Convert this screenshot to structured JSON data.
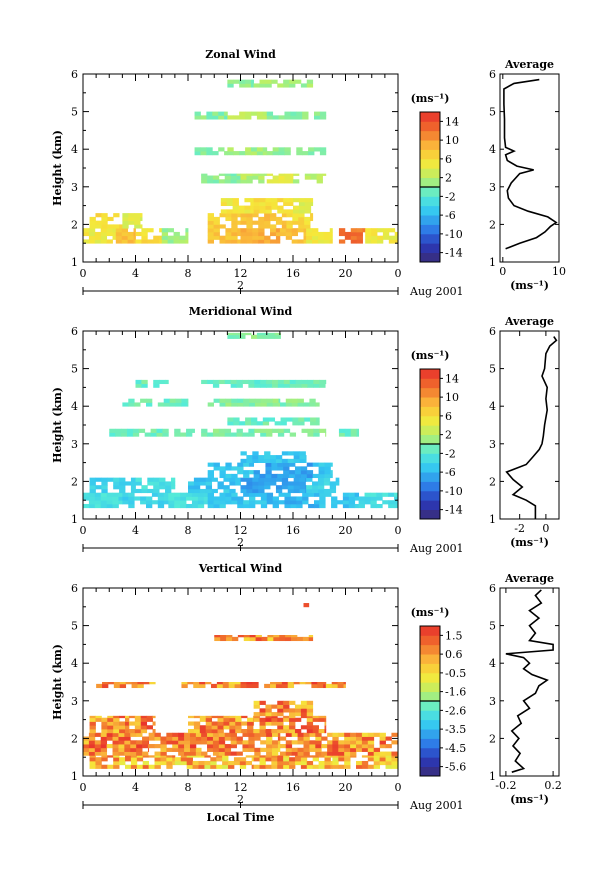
{
  "chart_data": [
    {
      "type": "heatmap",
      "title": "Zonal Wind",
      "ylabel": "Height (km)",
      "xlabel": "",
      "ylim": [
        1,
        6
      ],
      "xlim": [
        0,
        24
      ],
      "yticks": [
        "1",
        "2",
        "3",
        "4",
        "5",
        "6"
      ],
      "xticks": [
        "0",
        "4",
        "8",
        "12",
        "16",
        "20",
        "0"
      ],
      "date_day": "2",
      "date_label": "Aug 2001",
      "colorbar_unit": "(ms⁻¹)",
      "colorbar_ticks": [
        "14",
        "10",
        "6",
        "2",
        "-2",
        "-6",
        "-10",
        "-14"
      ],
      "cmin": -16,
      "cmax": 16,
      "color_stops": [
        "#3a2b74",
        "#2a38b8",
        "#2e7ee8",
        "#33c4f2",
        "#56ecd8",
        "#b6f06a",
        "#f6e83a",
        "#fab43a",
        "#f06a2c",
        "#e8302c"
      ],
      "layers": [
        {
          "y": [
            1.5,
            1.9
          ],
          "segments": [
            [
              0,
              2.5,
              5
            ],
            [
              2.5,
              4,
              8
            ],
            [
              4,
              6,
              6
            ],
            [
              6,
              8,
              1
            ],
            [
              9.5,
              12,
              8
            ],
            [
              12,
              15,
              9
            ],
            [
              15,
              17,
              8
            ],
            [
              17,
              19,
              5
            ],
            [
              19.5,
              21.5,
              12
            ],
            [
              21.5,
              24,
              5
            ]
          ]
        },
        {
          "y": [
            1.9,
            2.3
          ],
          "segments": [
            [
              0.5,
              3,
              6
            ],
            [
              3,
              4.5,
              4
            ],
            [
              9.5,
              12,
              7
            ],
            [
              12,
              15.5,
              8
            ],
            [
              15.5,
              17.5,
              6
            ]
          ]
        },
        {
          "y": [
            2.3,
            2.7
          ],
          "segments": [
            [
              10.5,
              13,
              5
            ],
            [
              13,
              16,
              6
            ],
            [
              16,
              17.5,
              4
            ]
          ]
        },
        {
          "y": [
            3.1,
            3.35
          ],
          "segments": [
            [
              9,
              12,
              0
            ],
            [
              12,
              14,
              2
            ],
            [
              14,
              16,
              4
            ],
            [
              16,
              18.5,
              2
            ]
          ]
        },
        {
          "y": [
            3.85,
            4.05
          ],
          "segments": [
            [
              8.5,
              11,
              0
            ],
            [
              11,
              14,
              1
            ],
            [
              14,
              18.5,
              0
            ]
          ]
        },
        {
          "y": [
            4.8,
            5.0
          ],
          "segments": [
            [
              8.5,
              11,
              0
            ],
            [
              11,
              14,
              2
            ],
            [
              14,
              18.5,
              0
            ]
          ]
        },
        {
          "y": [
            5.65,
            5.85
          ],
          "segments": [
            [
              11,
              13,
              0
            ],
            [
              13,
              17.5,
              1
            ]
          ]
        }
      ],
      "average": {
        "title": "Average",
        "xticks": [
          "0",
          "10"
        ],
        "xlim": [
          -0.5,
          10
        ],
        "unit": "(ms⁻¹)",
        "profile": [
          [
            1.35,
            0.5
          ],
          [
            1.5,
            3.0
          ],
          [
            1.65,
            6.0
          ],
          [
            1.8,
            7.5
          ],
          [
            1.95,
            8.5
          ],
          [
            2.05,
            9.5
          ],
          [
            2.2,
            8.0
          ],
          [
            2.35,
            4.5
          ],
          [
            2.5,
            2.0
          ],
          [
            2.7,
            1.0
          ],
          [
            2.9,
            0.8
          ],
          [
            3.1,
            1.5
          ],
          [
            3.35,
            3.0
          ],
          [
            3.45,
            5.5
          ],
          [
            3.55,
            2.5
          ],
          [
            3.7,
            0.8
          ],
          [
            3.85,
            0.5
          ],
          [
            3.95,
            2.0
          ],
          [
            4.05,
            0.5
          ],
          [
            4.3,
            0.3
          ],
          [
            4.8,
            0.3
          ],
          [
            5.2,
            0.2
          ],
          [
            5.6,
            0.2
          ],
          [
            5.75,
            2.0
          ],
          [
            5.85,
            6.5
          ]
        ]
      }
    },
    {
      "type": "heatmap",
      "title": "Meridional Wind",
      "ylabel": "Height (km)",
      "xlabel": "",
      "ylim": [
        1,
        6
      ],
      "xlim": [
        0,
        24
      ],
      "yticks": [
        "1",
        "2",
        "3",
        "4",
        "5",
        "6"
      ],
      "xticks": [
        "0",
        "4",
        "8",
        "12",
        "16",
        "20",
        "0"
      ],
      "date_day": "2",
      "date_label": "Aug 2001",
      "colorbar_unit": "(ms⁻¹)",
      "colorbar_ticks": [
        "14",
        "10",
        "6",
        "2",
        "-2",
        "-6",
        "-10",
        "-14"
      ],
      "cmin": -16,
      "cmax": 16,
      "color_stops": [
        "#3a2b74",
        "#2a38b8",
        "#2e7ee8",
        "#33c4f2",
        "#56ecd8",
        "#b6f06a",
        "#f6e83a",
        "#fab43a",
        "#f06a2c",
        "#e8302c"
      ],
      "layers": [
        {
          "y": [
            1.3,
            1.7
          ],
          "segments": [
            [
              0,
              3,
              -3
            ],
            [
              3,
              6.5,
              -4
            ],
            [
              6.5,
              9.5,
              -3
            ],
            [
              9.5,
              14,
              -5
            ],
            [
              14,
              18,
              -6
            ],
            [
              18,
              21,
              -5
            ],
            [
              21,
              24,
              -3
            ]
          ]
        },
        {
          "y": [
            1.7,
            2.1
          ],
          "segments": [
            [
              0.5,
              4,
              -4
            ],
            [
              4,
              7,
              -3
            ],
            [
              8,
              12,
              -5
            ],
            [
              12,
              17,
              -7
            ],
            [
              17,
              19.5,
              -4
            ]
          ]
        },
        {
          "y": [
            2.1,
            2.5
          ],
          "segments": [
            [
              9.5,
              13,
              -5
            ],
            [
              13,
              17.5,
              -7
            ],
            [
              17.5,
              19,
              -5
            ]
          ]
        },
        {
          "y": [
            2.5,
            2.8
          ],
          "segments": [
            [
              12,
              17,
              -5
            ]
          ]
        },
        {
          "y": [
            3.2,
            3.4
          ],
          "segments": [
            [
              2,
              8.5,
              -1
            ],
            [
              9,
              18.5,
              0
            ],
            [
              19.5,
              21,
              -1
            ]
          ]
        },
        {
          "y": [
            3.5,
            3.7
          ],
          "segments": [
            [
              11,
              18,
              -1
            ]
          ]
        },
        {
          "y": [
            4.0,
            4.2
          ],
          "segments": [
            [
              3,
              8,
              -1
            ],
            [
              9.5,
              15,
              0
            ],
            [
              15,
              18,
              0
            ]
          ]
        },
        {
          "y": [
            4.5,
            4.7
          ],
          "segments": [
            [
              4,
              6.5,
              -1
            ],
            [
              9,
              18.5,
              -1
            ]
          ]
        },
        {
          "y": [
            5.8,
            5.95
          ],
          "segments": [
            [
              11,
              15.5,
              0
            ]
          ]
        }
      ],
      "average": {
        "title": "Average",
        "xticks": [
          "-2",
          "0"
        ],
        "xlim": [
          -3.5,
          1
        ],
        "unit": "(ms⁻¹)",
        "profile": [
          [
            1.0,
            -0.8
          ],
          [
            1.35,
            -0.8
          ],
          [
            1.5,
            -1.5
          ],
          [
            1.65,
            -2.5
          ],
          [
            1.85,
            -1.8
          ],
          [
            2.05,
            -2.5
          ],
          [
            2.25,
            -3.0
          ],
          [
            2.45,
            -1.5
          ],
          [
            2.65,
            -1.0
          ],
          [
            2.85,
            -0.5
          ],
          [
            3.0,
            -0.3
          ],
          [
            3.2,
            -0.2
          ],
          [
            3.5,
            -0.1
          ],
          [
            3.9,
            0.1
          ],
          [
            4.2,
            0.0
          ],
          [
            4.5,
            0.1
          ],
          [
            4.8,
            -0.3
          ],
          [
            5.0,
            -0.1
          ],
          [
            5.4,
            0.0
          ],
          [
            5.6,
            0.3
          ],
          [
            5.75,
            0.8
          ],
          [
            5.85,
            0.6
          ]
        ]
      }
    },
    {
      "type": "heatmap",
      "title": "Vertical Wind",
      "ylabel": "Height (km)",
      "xlabel": "Local Time",
      "ylim": [
        1,
        6
      ],
      "xlim": [
        0,
        24
      ],
      "yticks": [
        "1",
        "2",
        "3",
        "4",
        "5",
        "6"
      ],
      "xticks": [
        "0",
        "4",
        "8",
        "12",
        "16",
        "20",
        "0"
      ],
      "date_day": "2",
      "date_label": "Aug 2001",
      "colorbar_unit": "(ms⁻¹)",
      "colorbar_ticks": [
        "1.5",
        "0.6",
        "-0.5",
        "-1.6",
        "-2.6",
        "-3.5",
        "-4.5",
        "-5.6"
      ],
      "cmin": -6,
      "cmax": 2,
      "color_stops": [
        "#3a2b74",
        "#2a38b8",
        "#2e7ee8",
        "#33c4f2",
        "#56ecd8",
        "#b6f06a",
        "#f6e83a",
        "#fab43a",
        "#f06a2c",
        "#e8302c"
      ],
      "layers": [
        {
          "y": [
            1.2,
            1.55
          ],
          "segments": [
            [
              0.5,
              7,
              0.2
            ],
            [
              7,
              13,
              0.0
            ],
            [
              13,
              19,
              0.2
            ],
            [
              19,
              24,
              0.1
            ]
          ]
        },
        {
          "y": [
            1.55,
            2.15
          ],
          "segments": [
            [
              0,
              5,
              0.7
            ],
            [
              5,
              9,
              0.9
            ],
            [
              9,
              15,
              0.6
            ],
            [
              15,
              19,
              0.8
            ],
            [
              19,
              24,
              0.6
            ]
          ]
        },
        {
          "y": [
            2.15,
            2.6
          ],
          "segments": [
            [
              0.5,
              3.5,
              0.6
            ],
            [
              3.5,
              5.5,
              0.9
            ],
            [
              8,
              13,
              0.6
            ],
            [
              13,
              18.5,
              0.8
            ]
          ]
        },
        {
          "y": [
            2.6,
            3.0
          ],
          "segments": [
            [
              13,
              17.5,
              0.6
            ]
          ]
        },
        {
          "y": [
            3.35,
            3.5
          ],
          "segments": [
            [
              1,
              5.5,
              0.6
            ],
            [
              7.5,
              12,
              0.6
            ],
            [
              12,
              18.5,
              0.8
            ],
            [
              18.5,
              20,
              0.6
            ]
          ]
        },
        {
          "y": [
            4.6,
            4.75
          ],
          "segments": [
            [
              10,
              17.5,
              0.6
            ]
          ]
        },
        {
          "y": [
            5.5,
            5.6
          ],
          "segments": [
            [
              16.8,
              17.2,
              0.6
            ]
          ]
        }
      ],
      "average": {
        "title": "Average",
        "xticks": [
          "-0.2",
          "0.2"
        ],
        "xlim": [
          -0.25,
          0.25
        ],
        "unit": "(ms⁻¹)",
        "profile": [
          [
            1.1,
            -0.15
          ],
          [
            1.2,
            -0.05
          ],
          [
            1.4,
            -0.12
          ],
          [
            1.6,
            -0.08
          ],
          [
            1.8,
            -0.14
          ],
          [
            2.0,
            -0.09
          ],
          [
            2.2,
            -0.15
          ],
          [
            2.4,
            -0.07
          ],
          [
            2.6,
            -0.1
          ],
          [
            2.8,
            0.0
          ],
          [
            3.0,
            -0.05
          ],
          [
            3.2,
            0.05
          ],
          [
            3.4,
            0.08
          ],
          [
            3.55,
            0.15
          ],
          [
            3.7,
            0.02
          ],
          [
            3.85,
            -0.05
          ],
          [
            4.0,
            0.0
          ],
          [
            4.15,
            -0.05
          ],
          [
            4.25,
            -0.2
          ],
          [
            4.35,
            0.2
          ],
          [
            4.5,
            0.2
          ],
          [
            4.6,
            0.0
          ],
          [
            4.8,
            0.05
          ],
          [
            5.0,
            0.0
          ],
          [
            5.2,
            0.08
          ],
          [
            5.4,
            0.0
          ],
          [
            5.6,
            0.1
          ],
          [
            5.8,
            0.05
          ],
          [
            5.95,
            0.1
          ]
        ]
      }
    }
  ]
}
